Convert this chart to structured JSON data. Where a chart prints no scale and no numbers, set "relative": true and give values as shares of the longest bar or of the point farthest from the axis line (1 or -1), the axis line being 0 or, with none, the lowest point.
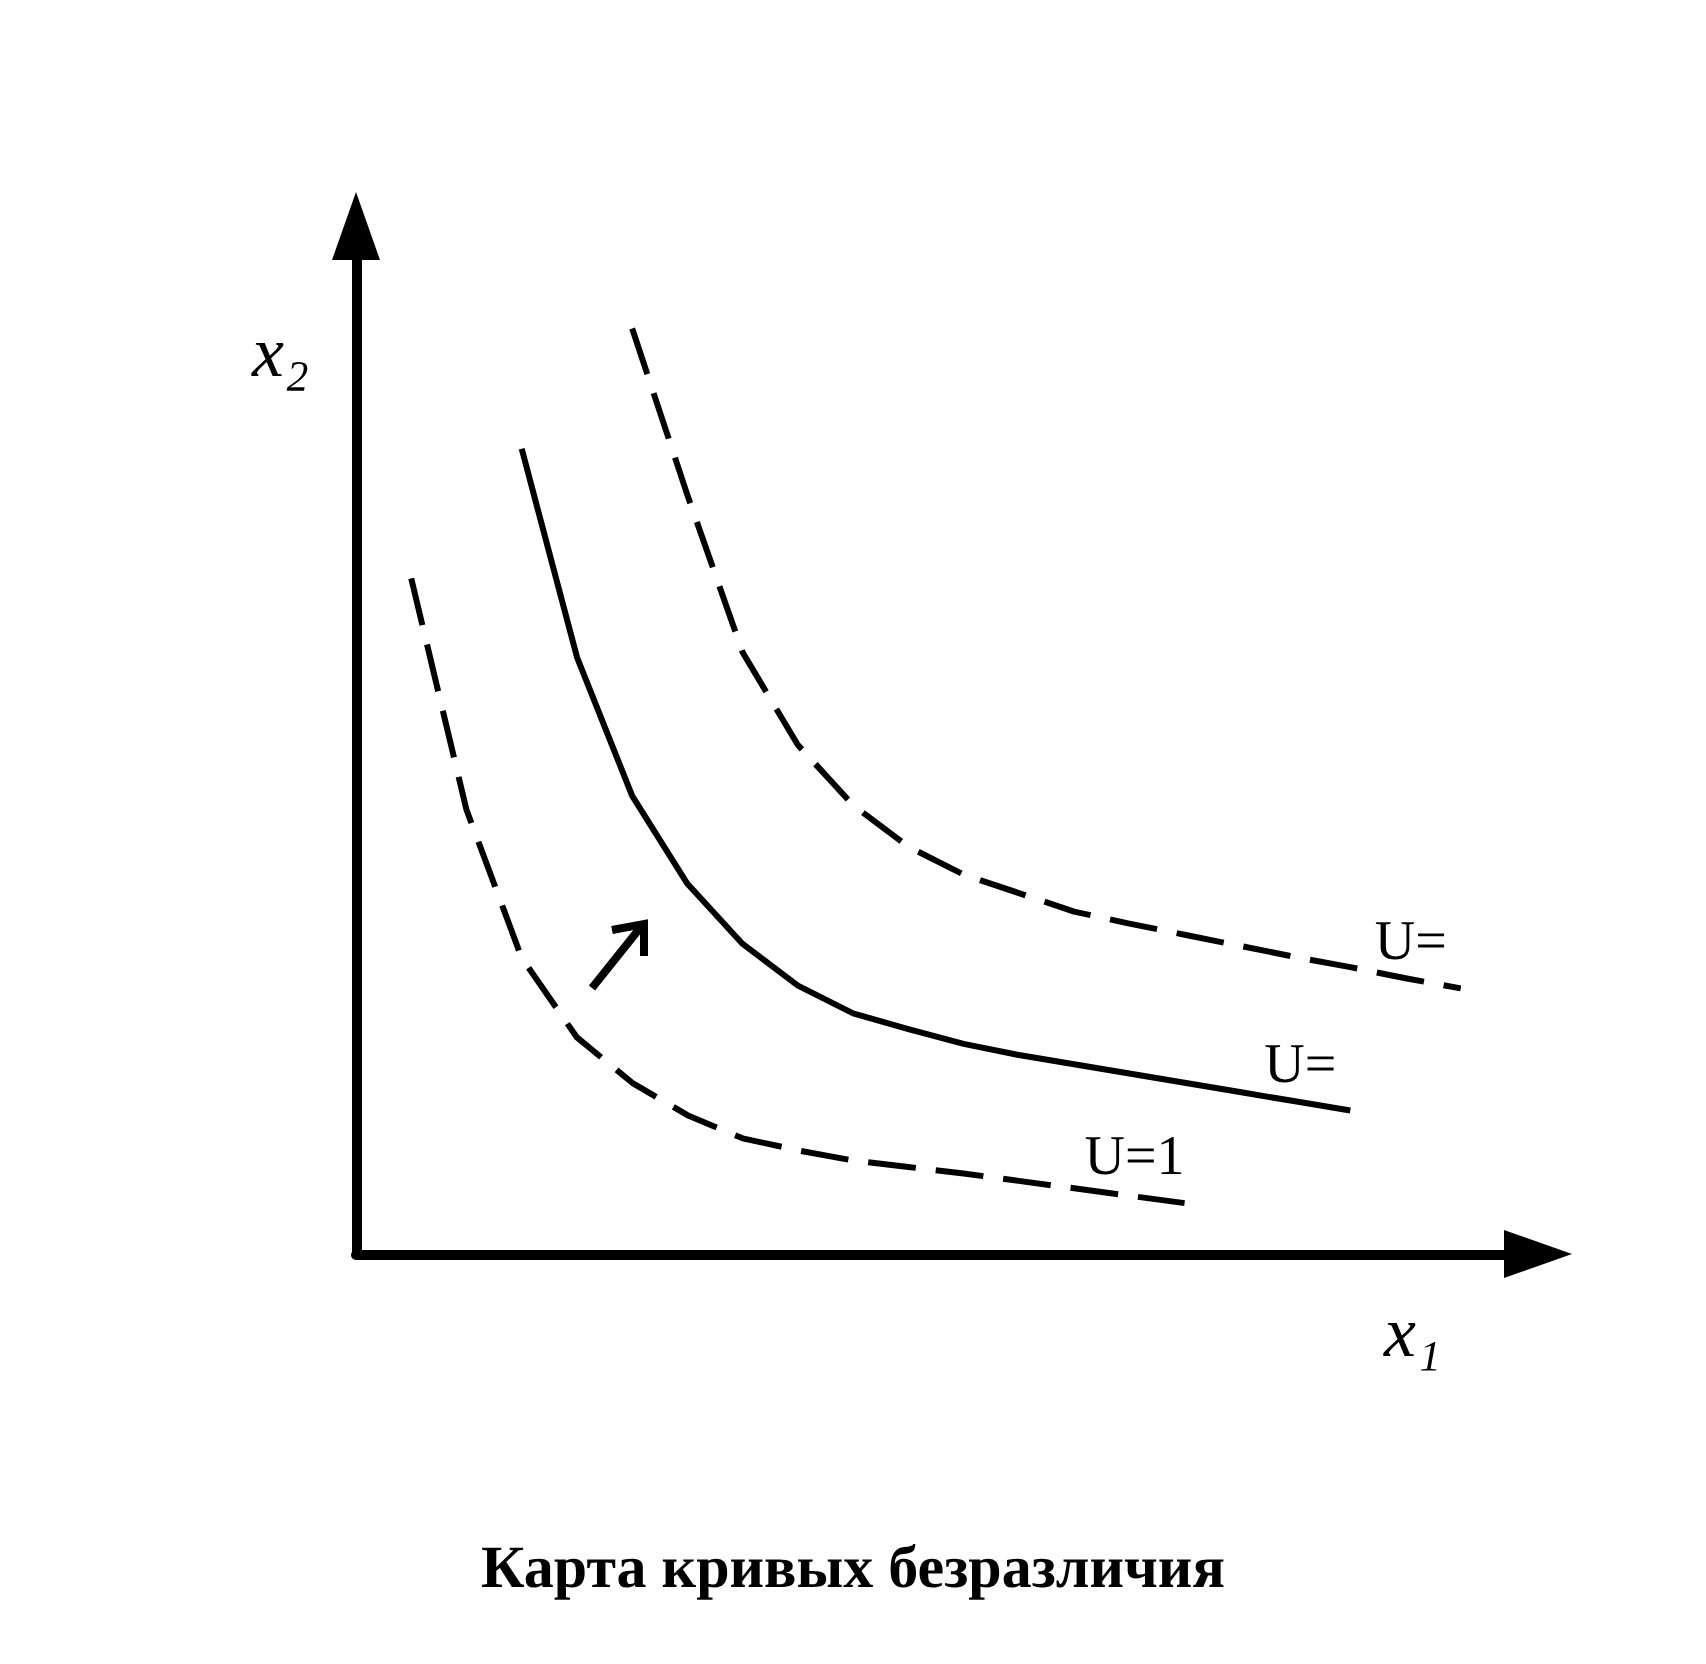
{
  "chart_data": {
    "type": "line",
    "title": "Карта кривых безразличия",
    "xlabel": "x₁",
    "ylabel": "x₂",
    "relative": true,
    "marker": "none",
    "categories": [
      null,
      null,
      null,
      null,
      null,
      null,
      null,
      null,
      null,
      null,
      null,
      null,
      null,
      null,
      null,
      null,
      null,
      null,
      null,
      null,
      null,
      null
    ],
    "series": [
      {
        "name": "U=1",
        "color": "#000000",
        "line_style": "dashed",
        "values": [
          null,
          0.73,
          0.48,
          0.32,
          0.234,
          0.185,
          0.15,
          0.125,
          0.112,
          0.101,
          0.094,
          0.087,
          0.079,
          0.071,
          0.063,
          0.055,
          null,
          null,
          null,
          null,
          null,
          null
        ]
      },
      {
        "name": "U=",
        "color": "#000000",
        "line_style": "solid",
        "values": [
          null,
          null,
          null,
          0.87,
          0.645,
          0.495,
          0.4,
          0.335,
          0.29,
          0.26,
          0.243,
          0.227,
          0.215,
          0.205,
          0.195,
          0.185,
          0.175,
          0.165,
          0.155,
          null,
          null,
          null
        ]
      },
      {
        "name": "U=",
        "color": "#000000",
        "line_style": "dashed",
        "values": [
          null,
          null,
          null,
          null,
          null,
          1,
          0.82,
          0.65,
          0.55,
          0.485,
          0.44,
          0.41,
          0.39,
          0.37,
          0.357,
          0.345,
          0.333,
          0.321,
          0.31,
          0.298,
          0.287,
          null
        ]
      }
    ]
  }
}
